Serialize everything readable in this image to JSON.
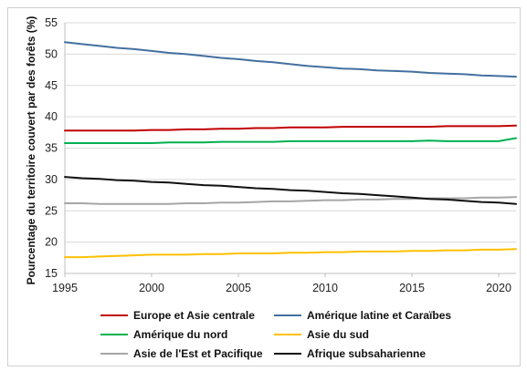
{
  "chart_data": {
    "type": "line",
    "title": "",
    "xlabel": "",
    "ylabel": "Pourcentage du territoire couvert par des forêts (%)",
    "xlim": [
      1995,
      2021
    ],
    "ylim": [
      15,
      55
    ],
    "x_ticks": [
      "1995",
      "2000",
      "2005",
      "2010",
      "2015",
      "2020"
    ],
    "y_ticks": [
      "15",
      "20",
      "25",
      "30",
      "35",
      "40",
      "45",
      "50",
      "55"
    ],
    "grid": "horizontal",
    "legend_position": "bottom",
    "x": [
      1995,
      1996,
      1997,
      1998,
      1999,
      2000,
      2001,
      2002,
      2003,
      2004,
      2005,
      2006,
      2007,
      2008,
      2009,
      2010,
      2011,
      2012,
      2013,
      2014,
      2015,
      2016,
      2017,
      2018,
      2019,
      2020,
      2021
    ],
    "series": [
      {
        "name": "Europe et Asie centrale",
        "color": "#c00000",
        "values": [
          37.8,
          37.8,
          37.8,
          37.8,
          37.8,
          37.9,
          37.9,
          38.0,
          38.0,
          38.1,
          38.1,
          38.2,
          38.2,
          38.3,
          38.3,
          38.3,
          38.4,
          38.4,
          38.4,
          38.4,
          38.4,
          38.4,
          38.5,
          38.5,
          38.5,
          38.5,
          38.6
        ]
      },
      {
        "name": "Amérique latine et Caraïbes",
        "color": "#44709f",
        "values": [
          51.9,
          51.6,
          51.3,
          51.0,
          50.8,
          50.5,
          50.2,
          50.0,
          49.7,
          49.4,
          49.2,
          48.9,
          48.7,
          48.4,
          48.1,
          47.9,
          47.7,
          47.6,
          47.4,
          47.3,
          47.2,
          47.0,
          46.9,
          46.8,
          46.6,
          46.5,
          46.4
        ]
      },
      {
        "name": "Amérique du nord",
        "color": "#00b050",
        "values": [
          35.8,
          35.8,
          35.8,
          35.8,
          35.8,
          35.8,
          35.9,
          35.9,
          35.9,
          36.0,
          36.0,
          36.0,
          36.0,
          36.1,
          36.1,
          36.1,
          36.1,
          36.1,
          36.1,
          36.1,
          36.1,
          36.2,
          36.1,
          36.1,
          36.1,
          36.1,
          36.6
        ]
      },
      {
        "name": "Asie du sud",
        "color": "#ffc000",
        "values": [
          17.6,
          17.6,
          17.7,
          17.8,
          17.9,
          18.0,
          18.0,
          18.0,
          18.1,
          18.1,
          18.2,
          18.2,
          18.2,
          18.3,
          18.3,
          18.4,
          18.4,
          18.5,
          18.5,
          18.5,
          18.6,
          18.6,
          18.7,
          18.7,
          18.8,
          18.8,
          18.9
        ]
      },
      {
        "name": "Asie de l'Est et Pacifique",
        "color": "#a6a6a6",
        "values": [
          26.2,
          26.2,
          26.1,
          26.1,
          26.1,
          26.1,
          26.1,
          26.2,
          26.2,
          26.3,
          26.3,
          26.4,
          26.5,
          26.5,
          26.6,
          26.7,
          26.7,
          26.8,
          26.8,
          26.9,
          26.9,
          27.0,
          27.0,
          27.0,
          27.1,
          27.1,
          27.2
        ]
      },
      {
        "name": "Afrique subsaharienne",
        "color": "#111111",
        "values": [
          30.4,
          30.2,
          30.1,
          29.9,
          29.8,
          29.6,
          29.5,
          29.3,
          29.1,
          29.0,
          28.8,
          28.6,
          28.5,
          28.3,
          28.2,
          28.0,
          27.8,
          27.7,
          27.5,
          27.3,
          27.1,
          26.9,
          26.8,
          26.6,
          26.4,
          26.3,
          26.1
        ]
      }
    ]
  }
}
